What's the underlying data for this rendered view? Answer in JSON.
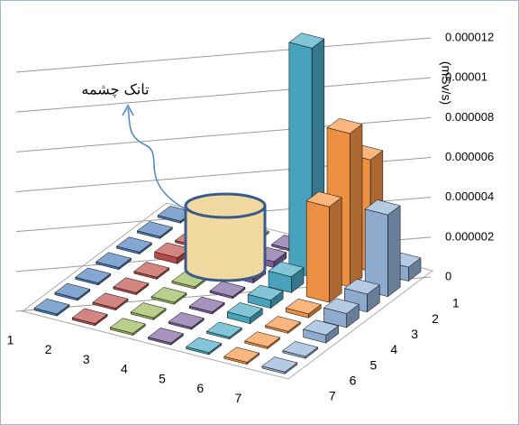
{
  "chart_data": {
    "type": "bar3d",
    "ylabel": "(mSv/s)",
    "annotation": "تانک چشمه",
    "categories": [
      "1",
      "2",
      "3",
      "4",
      "5",
      "6",
      "7"
    ],
    "series": [
      {
        "name": "1",
        "color": "#4f81bd",
        "values": [
          1e-07,
          1e-07,
          1e-07,
          1e-07,
          1e-07,
          1e-07,
          1e-07
        ]
      },
      {
        "name": "2",
        "color": "#c0504d",
        "values": [
          1e-07,
          1e-07,
          3e-07,
          1e-07,
          1e-07,
          1e-07,
          1e-07
        ]
      },
      {
        "name": "3",
        "color": "#9bbb59",
        "values": [
          1e-07,
          1e-07,
          1e-07,
          1e-07,
          1e-07,
          1e-07,
          1e-07
        ]
      },
      {
        "name": "4",
        "color": "#8064a2",
        "values": [
          1e-07,
          3e-07,
          2e-07,
          1e-07,
          1e-07,
          1e-07,
          1e-07
        ]
      },
      {
        "name": "5",
        "color": "#4bacc6",
        "values": [
          1e-07,
          1.15e-05,
          8e-07,
          4e-07,
          3e-07,
          1e-07,
          1e-07
        ]
      },
      {
        "name": "6",
        "color": "#f79646",
        "values": [
          5.6e-06,
          7.7e-06,
          4.8e-06,
          2e-07,
          1e-07,
          1e-07,
          1e-07
        ]
      },
      {
        "name": "7",
        "color": "#95b3d7",
        "values": [
          7e-07,
          4.1e-06,
          9e-07,
          7e-07,
          4e-07,
          1e-07,
          1e-07
        ]
      }
    ],
    "ylim": [
      0,
      1.2e-05
    ],
    "yticks": [
      0,
      {
        "value": 2e-06,
        "label": "0.000002"
      },
      {
        "value": 4e-06,
        "label": "0.000004"
      },
      {
        "value": 6e-06,
        "label": "0.000006"
      },
      {
        "value": 8e-06,
        "label": "0.000008"
      },
      {
        "value": 1e-05,
        "label": "0.00001"
      },
      {
        "value": 1.2e-05,
        "label": "0.000012"
      }
    ],
    "grid": true
  }
}
